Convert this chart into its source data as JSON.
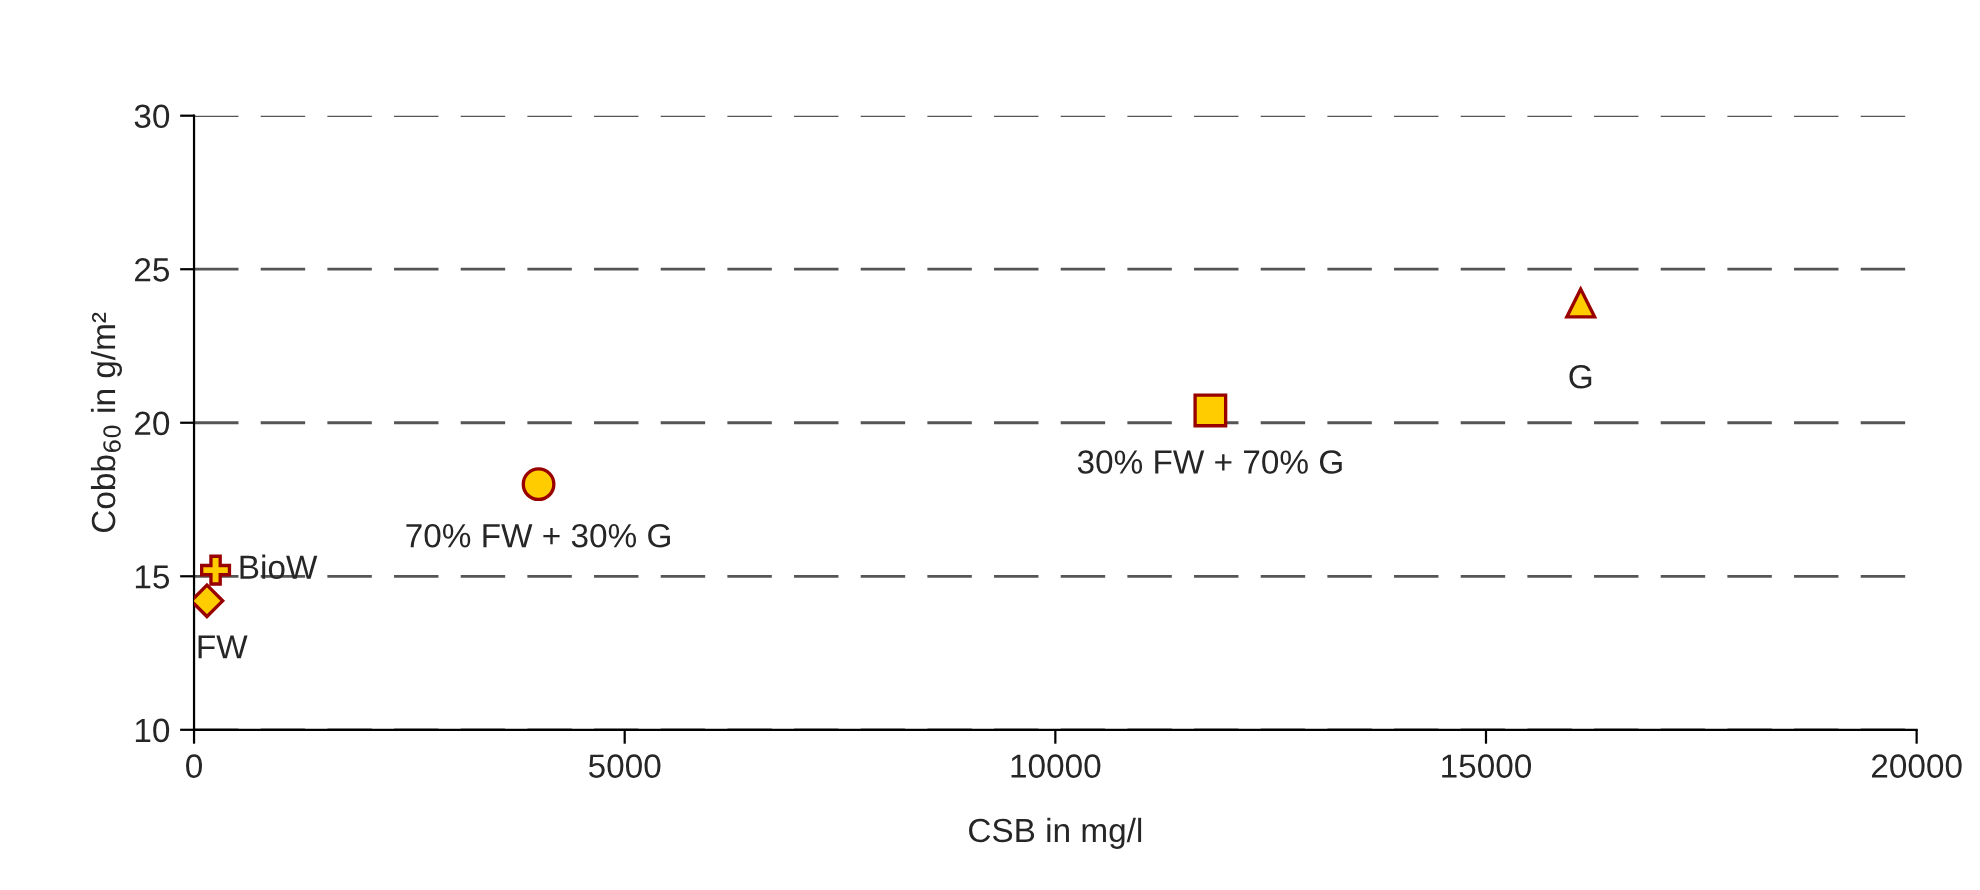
{
  "chart_data": {
    "type": "scatter",
    "xlabel": "CSB in mg/l",
    "ylabel": "Cobb$_{60}$ in g/m²",
    "xlim": [
      0,
      20000
    ],
    "xticks": [
      0,
      5000,
      10000,
      15000,
      20000
    ],
    "ylim": [
      10,
      30
    ],
    "yticks": [
      10,
      15,
      20,
      25,
      30
    ],
    "grid": "y",
    "line_style": "dashed",
    "series": [
      {
        "x": [
          150
        ],
        "values": [
          14.2
        ],
        "color": "#ffcc00",
        "marker": "diamond"
      },
      {
        "x": [
          250
        ],
        "values": [
          15.2
        ],
        "color": "#ffcc00",
        "marker": "cross"
      },
      {
        "x": [
          4000
        ],
        "values": [
          18.0
        ],
        "color": "#ffcc00",
        "marker": "circle"
      },
      {
        "x": [
          11800
        ],
        "values": [
          20.4
        ],
        "color": "#ffcc00",
        "marker": "square"
      },
      {
        "x": [
          16100
        ],
        "values": [
          23.9
        ],
        "color": "#ffcc00",
        "marker": "triangle"
      }
    ],
    "annotations": [
      {
        "text": "FW",
        "x": 150,
        "y": 14.2
      },
      {
        "text": "BioW",
        "x": 250,
        "y": 15.2
      },
      {
        "text": "70% FW + 30% G",
        "x": 4000,
        "y": 18.0
      },
      {
        "text": "30% FW + 70% G",
        "x": 11800,
        "y": 20.4
      },
      {
        "text": "G",
        "x": 16100,
        "y": 23.9
      }
    ]
  }
}
